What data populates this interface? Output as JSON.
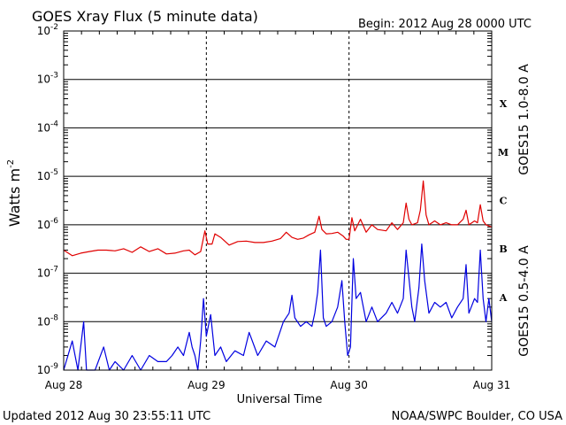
{
  "header": {
    "title": "GOES Xray Flux (5 minute data)",
    "begin": "Begin:  2012 Aug 28 0000 UTC"
  },
  "footer": {
    "updated": "Updated 2012 Aug 30 23:55:11 UTC",
    "credit": "NOAA/SWPC Boulder, CO USA"
  },
  "chart_data": {
    "type": "line",
    "title": "GOES Xray Flux (5 minute data)",
    "xlabel": "Universal Time",
    "ylabel": "Watts m",
    "ylabel_sup": "-2",
    "yscale": "log",
    "ylim": [
      1e-09,
      0.01
    ],
    "xlim": [
      0,
      3
    ],
    "grid": true,
    "y_ticks": [
      {
        "exp": -9,
        "base": "10",
        "sup": "-9"
      },
      {
        "exp": -8,
        "base": "10",
        "sup": "-8"
      },
      {
        "exp": -7,
        "base": "10",
        "sup": "-7"
      },
      {
        "exp": -6,
        "base": "10",
        "sup": "-6"
      },
      {
        "exp": -5,
        "base": "10",
        "sup": "-5"
      },
      {
        "exp": -4,
        "base": "10",
        "sup": "-4"
      },
      {
        "exp": -3,
        "base": "10",
        "sup": "-3"
      },
      {
        "exp": -2,
        "base": "10",
        "sup": "-2"
      }
    ],
    "x_ticks": [
      {
        "day": 0,
        "label": "Aug 28"
      },
      {
        "day": 1,
        "label": "Aug 29"
      },
      {
        "day": 2,
        "label": "Aug 30"
      },
      {
        "day": 3,
        "label": "Aug 31"
      }
    ],
    "flare_classes": [
      {
        "label": "X",
        "exp": -3.5
      },
      {
        "label": "M",
        "exp": -4.5
      },
      {
        "label": "C",
        "exp": -5.5
      },
      {
        "label": "B",
        "exp": -6.5
      },
      {
        "label": "A",
        "exp": -7.5
      }
    ],
    "series": [
      {
        "name": "GOES15 1.0-8.0 A",
        "color": "#e00000",
        "points": [
          [
            0.0,
            3e-07
          ],
          [
            0.06,
            2.3e-07
          ],
          [
            0.12,
            2.6e-07
          ],
          [
            0.18,
            2.8e-07
          ],
          [
            0.24,
            3e-07
          ],
          [
            0.3,
            3e-07
          ],
          [
            0.36,
            2.9e-07
          ],
          [
            0.42,
            3.2e-07
          ],
          [
            0.48,
            2.7e-07
          ],
          [
            0.54,
            3.5e-07
          ],
          [
            0.6,
            2.8e-07
          ],
          [
            0.66,
            3.2e-07
          ],
          [
            0.72,
            2.5e-07
          ],
          [
            0.78,
            2.6e-07
          ],
          [
            0.84,
            2.9e-07
          ],
          [
            0.88,
            3e-07
          ],
          [
            0.92,
            2.4e-07
          ],
          [
            0.96,
            2.8e-07
          ],
          [
            0.99,
            7.5e-07
          ],
          [
            1.01,
            4e-07
          ],
          [
            1.04,
            4e-07
          ],
          [
            1.06,
            6.5e-07
          ],
          [
            1.1,
            5.5e-07
          ],
          [
            1.16,
            3.8e-07
          ],
          [
            1.22,
            4.5e-07
          ],
          [
            1.28,
            4.6e-07
          ],
          [
            1.34,
            4.3e-07
          ],
          [
            1.4,
            4.3e-07
          ],
          [
            1.46,
            4.6e-07
          ],
          [
            1.52,
            5.2e-07
          ],
          [
            1.56,
            7e-07
          ],
          [
            1.6,
            5.5e-07
          ],
          [
            1.64,
            5e-07
          ],
          [
            1.68,
            5.3e-07
          ],
          [
            1.72,
            6.2e-07
          ],
          [
            1.76,
            7e-07
          ],
          [
            1.79,
            1.5e-06
          ],
          [
            1.81,
            8e-07
          ],
          [
            1.84,
            6.5e-07
          ],
          [
            1.88,
            6.6e-07
          ],
          [
            1.92,
            7e-07
          ],
          [
            1.96,
            5.8e-07
          ],
          [
            1.98,
            5e-07
          ],
          [
            2.0,
            5e-07
          ],
          [
            2.02,
            1.4e-06
          ],
          [
            2.04,
            7.5e-07
          ],
          [
            2.08,
            1.3e-06
          ],
          [
            2.12,
            7e-07
          ],
          [
            2.16,
            1e-06
          ],
          [
            2.2,
            8e-07
          ],
          [
            2.26,
            7.5e-07
          ],
          [
            2.3,
            1.1e-06
          ],
          [
            2.34,
            8e-07
          ],
          [
            2.38,
            1.1e-06
          ],
          [
            2.4,
            2.8e-06
          ],
          [
            2.42,
            1.3e-06
          ],
          [
            2.44,
            1e-06
          ],
          [
            2.48,
            1.1e-06
          ],
          [
            2.5,
            2e-06
          ],
          [
            2.52,
            8e-06
          ],
          [
            2.54,
            1.6e-06
          ],
          [
            2.56,
            1e-06
          ],
          [
            2.6,
            1.2e-06
          ],
          [
            2.64,
            1e-06
          ],
          [
            2.68,
            1.1e-06
          ],
          [
            2.72,
            1e-06
          ],
          [
            2.76,
            1e-06
          ],
          [
            2.8,
            1.3e-06
          ],
          [
            2.82,
            2e-06
          ],
          [
            2.84,
            1e-06
          ],
          [
            2.88,
            1.2e-06
          ],
          [
            2.9,
            1.1e-06
          ],
          [
            2.92,
            2.6e-06
          ],
          [
            2.94,
            1.2e-06
          ],
          [
            2.96,
            1e-06
          ],
          [
            3.0,
            9e-07
          ]
        ]
      },
      {
        "name": "GOES15 0.5-4.0 A",
        "color": "#0000e0",
        "points": [
          [
            0.0,
            1e-09
          ],
          [
            0.06,
            4e-09
          ],
          [
            0.1,
            1e-09
          ],
          [
            0.14,
            1e-08
          ],
          [
            0.16,
            1e-09
          ],
          [
            0.22,
            1e-09
          ],
          [
            0.28,
            3e-09
          ],
          [
            0.32,
            1e-09
          ],
          [
            0.36,
            1.5e-09
          ],
          [
            0.42,
            1e-09
          ],
          [
            0.48,
            2e-09
          ],
          [
            0.54,
            1e-09
          ],
          [
            0.6,
            2e-09
          ],
          [
            0.66,
            1.5e-09
          ],
          [
            0.72,
            1.5e-09
          ],
          [
            0.76,
            2e-09
          ],
          [
            0.8,
            3e-09
          ],
          [
            0.84,
            2e-09
          ],
          [
            0.88,
            6e-09
          ],
          [
            0.9,
            3e-09
          ],
          [
            0.92,
            2e-09
          ],
          [
            0.94,
            1e-09
          ],
          [
            0.96,
            4e-09
          ],
          [
            0.98,
            3e-08
          ],
          [
            1.0,
            5e-09
          ],
          [
            1.03,
            1.4e-08
          ],
          [
            1.06,
            2e-09
          ],
          [
            1.1,
            3e-09
          ],
          [
            1.14,
            1.5e-09
          ],
          [
            1.2,
            2.5e-09
          ],
          [
            1.26,
            2e-09
          ],
          [
            1.3,
            6e-09
          ],
          [
            1.36,
            2e-09
          ],
          [
            1.42,
            4e-09
          ],
          [
            1.48,
            3e-09
          ],
          [
            1.54,
            1e-08
          ],
          [
            1.58,
            1.5e-08
          ],
          [
            1.6,
            3.5e-08
          ],
          [
            1.62,
            1.2e-08
          ],
          [
            1.66,
            8e-09
          ],
          [
            1.7,
            1e-08
          ],
          [
            1.74,
            8e-09
          ],
          [
            1.76,
            1.5e-08
          ],
          [
            1.78,
            4e-08
          ],
          [
            1.8,
            3e-07
          ],
          [
            1.82,
            1.2e-08
          ],
          [
            1.84,
            8e-09
          ],
          [
            1.88,
            1e-08
          ],
          [
            1.92,
            2e-08
          ],
          [
            1.95,
            7e-08
          ],
          [
            1.97,
            1e-08
          ],
          [
            1.99,
            2e-09
          ],
          [
            2.01,
            3e-09
          ],
          [
            2.03,
            2e-07
          ],
          [
            2.05,
            3e-08
          ],
          [
            2.08,
            4e-08
          ],
          [
            2.12,
            1e-08
          ],
          [
            2.16,
            2e-08
          ],
          [
            2.2,
            1e-08
          ],
          [
            2.26,
            1.5e-08
          ],
          [
            2.3,
            2.5e-08
          ],
          [
            2.34,
            1.5e-08
          ],
          [
            2.38,
            3e-08
          ],
          [
            2.4,
            3e-07
          ],
          [
            2.42,
            8e-08
          ],
          [
            2.44,
            2e-08
          ],
          [
            2.46,
            1e-08
          ],
          [
            2.49,
            5e-08
          ],
          [
            2.51,
            4e-07
          ],
          [
            2.53,
            7e-08
          ],
          [
            2.56,
            1.5e-08
          ],
          [
            2.6,
            2.5e-08
          ],
          [
            2.64,
            2e-08
          ],
          [
            2.68,
            2.5e-08
          ],
          [
            2.72,
            1.2e-08
          ],
          [
            2.76,
            2e-08
          ],
          [
            2.8,
            3e-08
          ],
          [
            2.82,
            1.5e-07
          ],
          [
            2.84,
            1.5e-08
          ],
          [
            2.88,
            3e-08
          ],
          [
            2.9,
            2.5e-08
          ],
          [
            2.92,
            3e-07
          ],
          [
            2.94,
            3e-08
          ],
          [
            2.96,
            1e-08
          ],
          [
            2.98,
            3e-08
          ],
          [
            3.0,
            1e-08
          ]
        ]
      }
    ]
  }
}
